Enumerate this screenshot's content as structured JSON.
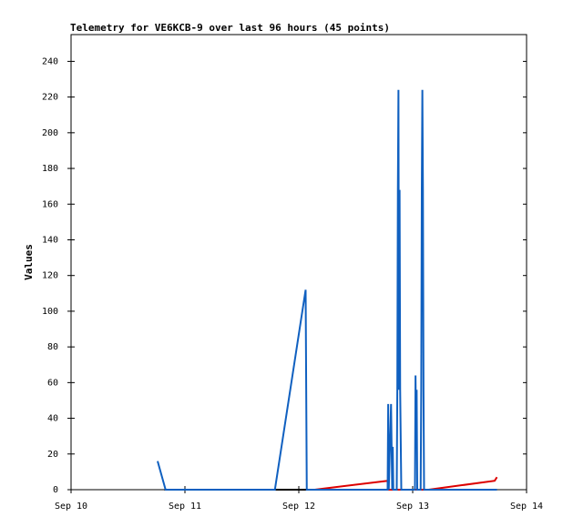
{
  "chart_data": {
    "type": "line",
    "title": "Telemetry for VE6KCB-9 over last 96 hours (45 points)",
    "y_label": "Values",
    "xlim": [
      10,
      14
    ],
    "xticks": [
      {
        "value": 10,
        "label": "Sep 10"
      },
      {
        "value": 11,
        "label": "Sep 11"
      },
      {
        "value": 12,
        "label": "Sep 12"
      },
      {
        "value": 13,
        "label": "Sep 13"
      },
      {
        "value": 14,
        "label": "Sep 14"
      }
    ],
    "ylim": [
      0,
      255
    ],
    "yticks": [
      0,
      20,
      40,
      60,
      80,
      100,
      120,
      140,
      160,
      180,
      200,
      220,
      240
    ],
    "grid": false,
    "series": [
      {
        "color": "#000000",
        "x": [
          10.82,
          13.74
        ],
        "values": [
          0,
          0
        ]
      },
      {
        "color": "#dd0000",
        "x": [
          12.14,
          12.78,
          12.785,
          13.14,
          13.72,
          13.74
        ],
        "values": [
          0,
          5,
          0,
          0,
          5,
          7
        ]
      },
      {
        "color": "#1060c0",
        "x": [
          10.76,
          10.83,
          11.79,
          12.06,
          12.065,
          12.07,
          12.78,
          12.785,
          12.79,
          12.8,
          12.81,
          12.82,
          12.825,
          12.83,
          12.86,
          12.865,
          12.87,
          12.875,
          12.88,
          12.885,
          12.89,
          12.9,
          13.02,
          13.025,
          13.03,
          13.035,
          13.04,
          13.05,
          13.07,
          13.075,
          13.08,
          13.085,
          13.09,
          13.095,
          13.1,
          13.74
        ],
        "values": [
          16,
          0,
          0,
          112,
          56,
          0,
          0,
          48,
          0,
          24,
          48,
          0,
          24,
          0,
          0,
          56,
          168,
          224,
          56,
          168,
          56,
          0,
          0,
          64,
          32,
          56,
          0,
          0,
          0,
          56,
          168,
          224,
          168,
          56,
          0,
          0
        ]
      }
    ]
  }
}
